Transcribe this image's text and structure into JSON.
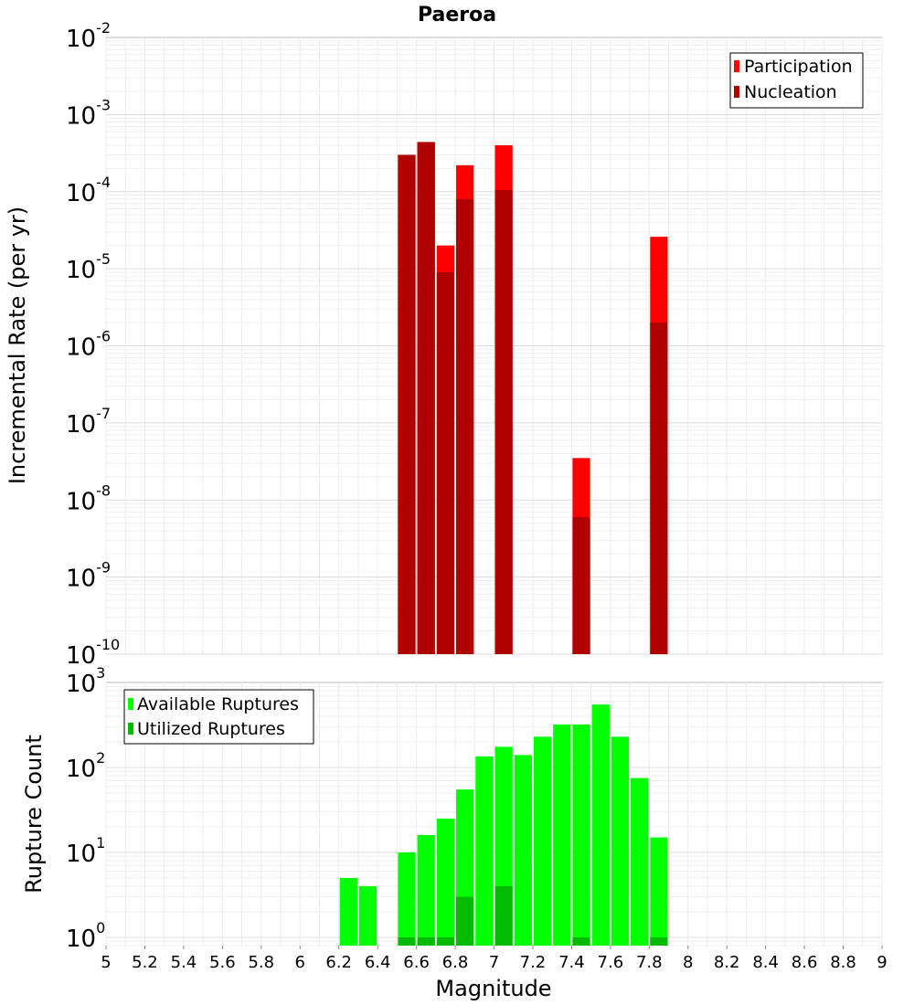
{
  "chart_data": [
    {
      "type": "bar",
      "title": "Paeroa",
      "xlabel": "",
      "ylabel": "Incremental Rate (per yr)",
      "yscale": "log",
      "ylim": [
        1e-10,
        0.01
      ],
      "xlim": [
        5,
        9
      ],
      "grid": true,
      "legend_position": "top-right",
      "bar_width": 0.1,
      "series": [
        {
          "name": "Participation",
          "color": "#ff0000",
          "x": [
            6.55,
            6.65,
            6.75,
            6.85,
            7.05,
            7.45,
            7.85
          ],
          "values": [
            0.0003,
            0.00044,
            2e-05,
            0.00022,
            0.0004,
            3.5e-08,
            2.6e-05
          ]
        },
        {
          "name": "Nucleation",
          "color": "#b00000",
          "x": [
            6.55,
            6.65,
            6.75,
            6.85,
            7.05,
            7.45,
            7.85
          ],
          "values": [
            0.0003,
            0.00044,
            9e-06,
            8e-05,
            0.000105,
            6e-09,
            2e-06
          ]
        }
      ]
    },
    {
      "type": "bar",
      "title": "",
      "xlabel": "Magnitude",
      "ylabel": "Rupture Count",
      "yscale": "log",
      "ylim": [
        0.8,
        1000
      ],
      "xlim": [
        5,
        9
      ],
      "grid": true,
      "legend_position": "top-left",
      "bar_width": 0.1,
      "x_ticks": [
        "5",
        "5.2",
        "5.4",
        "5.6",
        "5.8",
        "6",
        "6.2",
        "6.4",
        "6.6",
        "6.8",
        "7",
        "7.2",
        "7.4",
        "7.6",
        "7.8",
        "8",
        "8.2",
        "8.4",
        "8.6",
        "8.8",
        "9"
      ],
      "series": [
        {
          "name": "Available Ruptures",
          "color": "#00ff00",
          "x": [
            6.25,
            6.35,
            6.55,
            6.65,
            6.75,
            6.85,
            6.95,
            7.05,
            7.15,
            7.25,
            7.35,
            7.45,
            7.55,
            7.65,
            7.75,
            7.85
          ],
          "values": [
            5,
            4,
            10,
            16,
            25,
            55,
            135,
            175,
            140,
            230,
            320,
            320,
            550,
            230,
            75,
            15
          ]
        },
        {
          "name": "Utilized Ruptures",
          "color": "#00bb00",
          "x": [
            6.55,
            6.65,
            6.75,
            6.85,
            7.05,
            7.45,
            7.85
          ],
          "values": [
            1,
            1,
            1,
            3,
            4,
            1,
            1
          ]
        }
      ]
    }
  ]
}
